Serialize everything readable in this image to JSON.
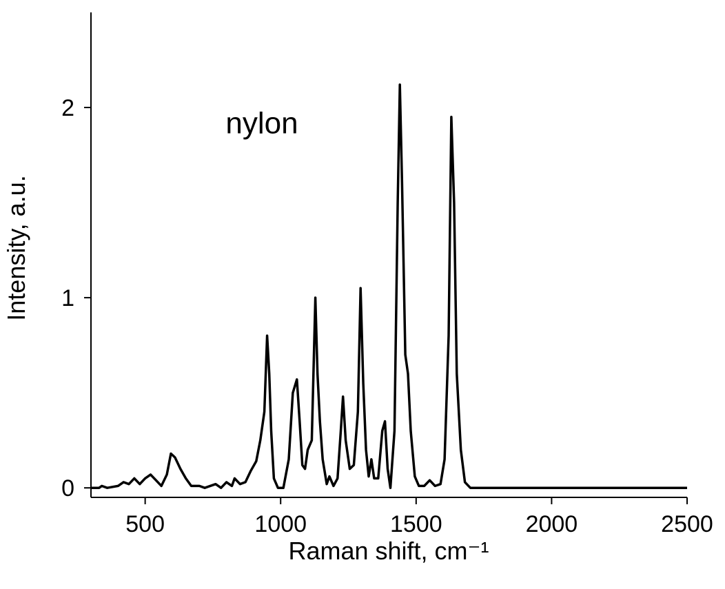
{
  "chart_data": {
    "type": "line",
    "x_label": "Raman shift, cm⁻¹",
    "y_label": "Intensity, a.u.",
    "annotation": "nylon",
    "xlim": [
      300,
      2500
    ],
    "ylim": [
      -0.05,
      2.5
    ],
    "xticks": [
      500,
      1000,
      1500,
      2000,
      2500
    ],
    "yticks": [
      0,
      1,
      2
    ],
    "grid": false,
    "x": [
      300,
      330,
      340,
      360,
      400,
      420,
      440,
      460,
      480,
      500,
      520,
      540,
      560,
      580,
      595,
      610,
      630,
      650,
      670,
      700,
      720,
      760,
      780,
      800,
      820,
      830,
      850,
      870,
      890,
      910,
      925,
      940,
      950,
      958,
      965,
      975,
      990,
      1010,
      1030,
      1045,
      1060,
      1070,
      1080,
      1090,
      1100,
      1115,
      1128,
      1136,
      1145,
      1155,
      1170,
      1180,
      1195,
      1210,
      1222,
      1230,
      1240,
      1255,
      1270,
      1285,
      1295,
      1305,
      1315,
      1325,
      1335,
      1345,
      1360,
      1375,
      1385,
      1395,
      1405,
      1420,
      1432,
      1440,
      1448,
      1460,
      1470,
      1480,
      1495,
      1510,
      1530,
      1550,
      1570,
      1590,
      1605,
      1620,
      1630,
      1640,
      1650,
      1665,
      1680,
      1700,
      1760,
      1900,
      2000,
      2200,
      2400,
      2500
    ],
    "series": [
      {
        "color": "#000000",
        "values": [
          0,
          0,
          0.01,
          0,
          0.01,
          0.03,
          0.02,
          0.05,
          0.02,
          0.05,
          0.07,
          0.04,
          0.01,
          0.07,
          0.18,
          0.16,
          0.1,
          0.05,
          0.01,
          0.01,
          0,
          0.02,
          0,
          0.03,
          0.01,
          0.05,
          0.02,
          0.03,
          0.09,
          0.14,
          0.25,
          0.4,
          0.8,
          0.6,
          0.3,
          0.05,
          0,
          0,
          0.15,
          0.5,
          0.57,
          0.35,
          0.12,
          0.1,
          0.2,
          0.25,
          1.0,
          0.6,
          0.35,
          0.15,
          0.02,
          0.06,
          0.01,
          0.05,
          0.3,
          0.48,
          0.25,
          0.1,
          0.12,
          0.4,
          1.05,
          0.55,
          0.2,
          0.06,
          0.15,
          0.05,
          0.05,
          0.3,
          0.35,
          0.1,
          0,
          0.3,
          1.5,
          2.12,
          1.6,
          0.7,
          0.6,
          0.3,
          0.06,
          0.01,
          0.01,
          0.04,
          0.01,
          0.02,
          0.15,
          0.8,
          1.95,
          1.5,
          0.6,
          0.2,
          0.03,
          0,
          0,
          0,
          0,
          0,
          0,
          0
        ]
      }
    ]
  }
}
